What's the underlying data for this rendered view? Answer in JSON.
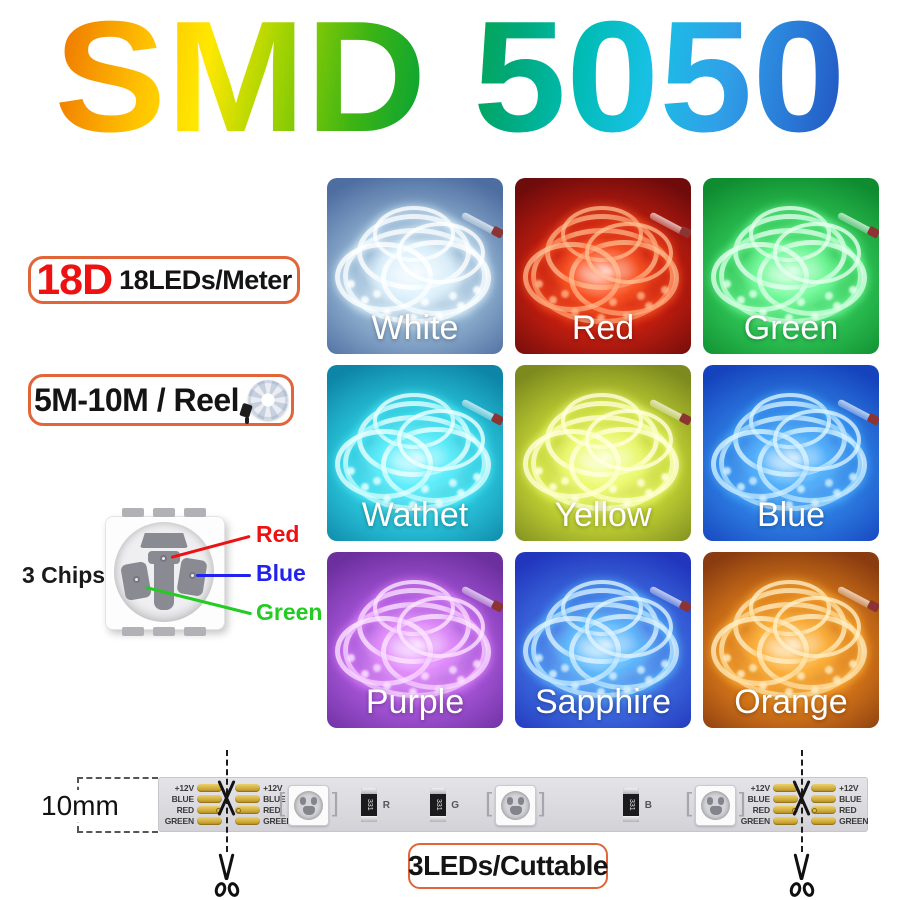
{
  "title": {
    "text": "SMD 5050"
  },
  "left_panel": {
    "density_badge": {
      "code": "18D",
      "label": "18LEDs/Meter"
    },
    "reel_badge": {
      "label": "5M-10M / Reel"
    },
    "chip_diagram": {
      "caption": "3 Chips",
      "pins": [
        {
          "name": "Red",
          "color": "#ee1111"
        },
        {
          "name": "Blue",
          "color": "#2222ee"
        },
        {
          "name": "Green",
          "color": "#22cc22"
        }
      ]
    }
  },
  "color_grid": {
    "tiles": [
      {
        "label": "White",
        "base": "#4e6da1",
        "mid": "#8fb0cf",
        "light": "#f2faff",
        "ring": "rgba(255,255,255,0.85)",
        "glow": "rgba(225,245,255,0.75)"
      },
      {
        "label": "Red",
        "base": "#6e0b0b",
        "mid": "#c41f10",
        "light": "#ff5a28",
        "ring": "rgba(255,185,140,0.8)",
        "glow": "rgba(255,90,40,0.65)"
      },
      {
        "label": "Green",
        "base": "#0f8c30",
        "mid": "#2fc455",
        "light": "#8affad",
        "ring": "rgba(225,255,235,0.85)",
        "glow": "rgba(120,255,160,0.65)"
      },
      {
        "label": "Wathet",
        "base": "#0d85a6",
        "mid": "#2cc8dd",
        "light": "#a8feff",
        "ring": "rgba(230,255,255,0.85)",
        "glow": "rgba(90,240,255,0.65)"
      },
      {
        "label": "Yellow",
        "base": "#7d8a1e",
        "mid": "#c3d435",
        "light": "#fbff9e",
        "ring": "rgba(255,255,220,0.85)",
        "glow": "rgba(240,255,120,0.65)"
      },
      {
        "label": "Blue",
        "base": "#1543bd",
        "mid": "#2f7fe3",
        "light": "#8fd4ff",
        "ring": "rgba(210,240,255,0.85)",
        "glow": "rgba(80,180,255,0.65)"
      },
      {
        "label": "Purple",
        "base": "#6c2f9e",
        "mid": "#a655d8",
        "light": "#f3c4ff",
        "ring": "rgba(250,225,255,0.85)",
        "glow": "rgba(230,140,255,0.65)"
      },
      {
        "label": "Sapphire",
        "base": "#2136bd",
        "mid": "#3f6ee0",
        "light": "#9fdcff",
        "ring": "rgba(215,240,255,0.85)",
        "glow": "rgba(90,190,255,0.65)"
      },
      {
        "label": "Orange",
        "base": "#8a3c10",
        "mid": "#d97a1a",
        "light": "#ffc95e",
        "ring": "rgba(255,235,190,0.85)",
        "glow": "rgba(255,180,60,0.7)"
      }
    ]
  },
  "strip_diagram": {
    "width_label": "10mm",
    "pad_labels": [
      "+12V",
      "BLUE",
      "RED",
      "GREEN"
    ],
    "resistors": [
      {
        "letter": "R"
      },
      {
        "letter": "G"
      },
      {
        "letter": "B"
      }
    ],
    "resistor_code": "331",
    "cuttable_label": "3LEDs/Cuttable"
  },
  "theme": {
    "badge_border": "#e2653a",
    "accent_red": "#ee1111",
    "strip_bg": "#dadade",
    "pad_gold": "#c89c28"
  }
}
